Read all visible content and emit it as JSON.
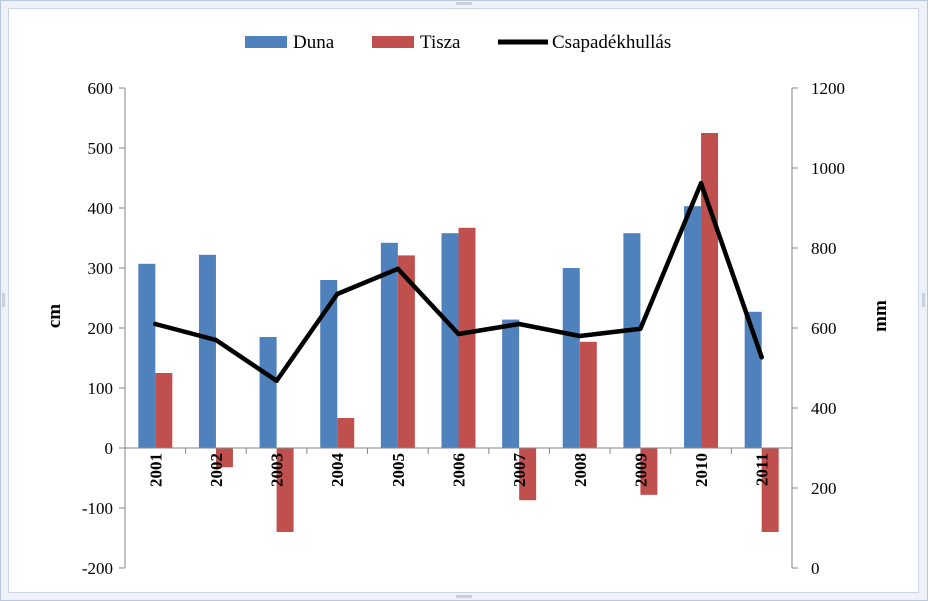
{
  "chart_data": {
    "type": "bar",
    "categories": [
      "2001",
      "2002",
      "2003",
      "2004",
      "2005",
      "2006",
      "2007",
      "2008",
      "2009",
      "2010",
      "2011"
    ],
    "series": [
      {
        "name": "Duna",
        "type": "bar",
        "axis": "left",
        "color": "#4f81bd",
        "values": [
          307,
          322,
          185,
          280,
          342,
          358,
          214,
          300,
          358,
          403,
          227
        ]
      },
      {
        "name": "Tisza",
        "type": "bar",
        "axis": "left",
        "color": "#c0504d",
        "values": [
          125,
          -32,
          -140,
          50,
          321,
          367,
          -87,
          177,
          -78,
          525,
          -140
        ]
      },
      {
        "name": "Csapadékhullás",
        "type": "line",
        "axis": "right",
        "color": "#000000",
        "values": [
          610,
          570,
          468,
          685,
          748,
          585,
          610,
          580,
          598,
          962,
          527
        ]
      }
    ],
    "ylabel": "cm",
    "y2label": "mm",
    "ylim": [
      -200,
      600
    ],
    "y2lim": [
      0,
      1200
    ],
    "yticks": [
      "600",
      "500",
      "400",
      "300",
      "200",
      "100",
      "0",
      "-100",
      "-200"
    ],
    "y2ticks": [
      "1200",
      "1000",
      "800",
      "600",
      "400",
      "200",
      "0"
    ],
    "legend_position": "top",
    "grid": false
  }
}
